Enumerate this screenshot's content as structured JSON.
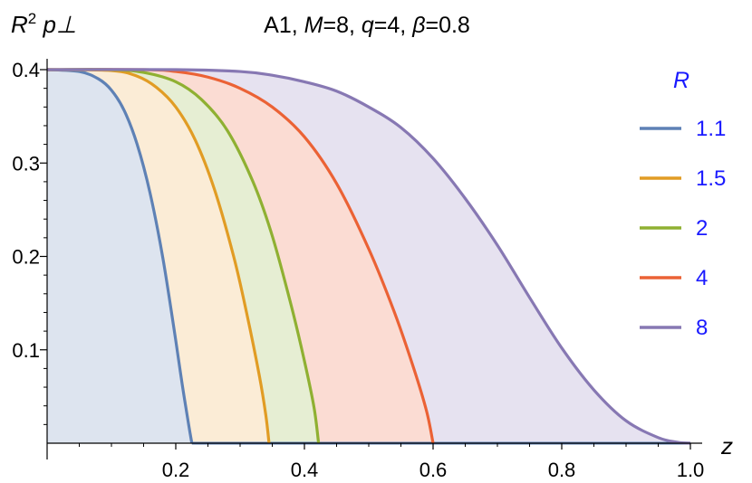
{
  "chart_data": {
    "type": "area",
    "title": "A1, M=8, q=4, β=0.8",
    "xlabel": "z",
    "ylabel": "R² p⊥",
    "xlim": [
      0,
      1.0
    ],
    "ylim": [
      0,
      0.4
    ],
    "xticks": [
      0.2,
      0.4,
      0.6,
      0.8,
      1.0
    ],
    "xtick_labels": [
      "0.2",
      "0.4",
      "0.6",
      "0.8",
      "1.0"
    ],
    "yticks": [
      0.1,
      0.2,
      0.3,
      0.4
    ],
    "ytick_labels": [
      "0.1",
      "0.2",
      "0.3",
      "0.4"
    ],
    "grid": false,
    "legend_title": "R",
    "legend_position": "right",
    "series": [
      {
        "name": "1.1",
        "color": "#5e81b5",
        "fill": "#dde4ef",
        "x": [
          0,
          0.05,
          0.08,
          0.1,
          0.12,
          0.14,
          0.16,
          0.18,
          0.2,
          0.21,
          0.22,
          0.225
        ],
        "y": [
          0.4,
          0.398,
          0.39,
          0.378,
          0.356,
          0.32,
          0.268,
          0.198,
          0.11,
          0.063,
          0.02,
          0
        ]
      },
      {
        "name": "1.5",
        "color": "#e19c24",
        "fill": "#fbecd6",
        "x": [
          0,
          0.1,
          0.14,
          0.17,
          0.2,
          0.23,
          0.26,
          0.29,
          0.31,
          0.33,
          0.34,
          0.345
        ],
        "y": [
          0.4,
          0.399,
          0.393,
          0.381,
          0.36,
          0.325,
          0.272,
          0.2,
          0.14,
          0.072,
          0.03,
          0
        ]
      },
      {
        "name": "2",
        "color": "#8fb032",
        "fill": "#e6eed3",
        "x": [
          0,
          0.1,
          0.15,
          0.2,
          0.24,
          0.28,
          0.32,
          0.35,
          0.38,
          0.4,
          0.415,
          0.422
        ],
        "y": [
          0.4,
          0.4,
          0.397,
          0.387,
          0.368,
          0.335,
          0.28,
          0.222,
          0.146,
          0.088,
          0.038,
          0
        ]
      },
      {
        "name": "4",
        "color": "#eb6235",
        "fill": "#fbdcd3",
        "x": [
          0,
          0.15,
          0.2,
          0.25,
          0.3,
          0.35,
          0.4,
          0.45,
          0.5,
          0.54,
          0.57,
          0.59,
          0.6
        ],
        "y": [
          0.4,
          0.4,
          0.398,
          0.392,
          0.38,
          0.36,
          0.328,
          0.278,
          0.208,
          0.14,
          0.08,
          0.034,
          0
        ]
      },
      {
        "name": "8",
        "color": "#8778b3",
        "fill": "#e6e2f0",
        "x": [
          0,
          0.2,
          0.3,
          0.35,
          0.4,
          0.45,
          0.5,
          0.55,
          0.6,
          0.65,
          0.7,
          0.75,
          0.8,
          0.85,
          0.9,
          0.95,
          0.98,
          1.0
        ],
        "y": [
          0.4,
          0.4,
          0.398,
          0.394,
          0.387,
          0.377,
          0.36,
          0.338,
          0.305,
          0.262,
          0.212,
          0.156,
          0.102,
          0.057,
          0.024,
          0.006,
          0.001,
          0
        ]
      }
    ]
  }
}
